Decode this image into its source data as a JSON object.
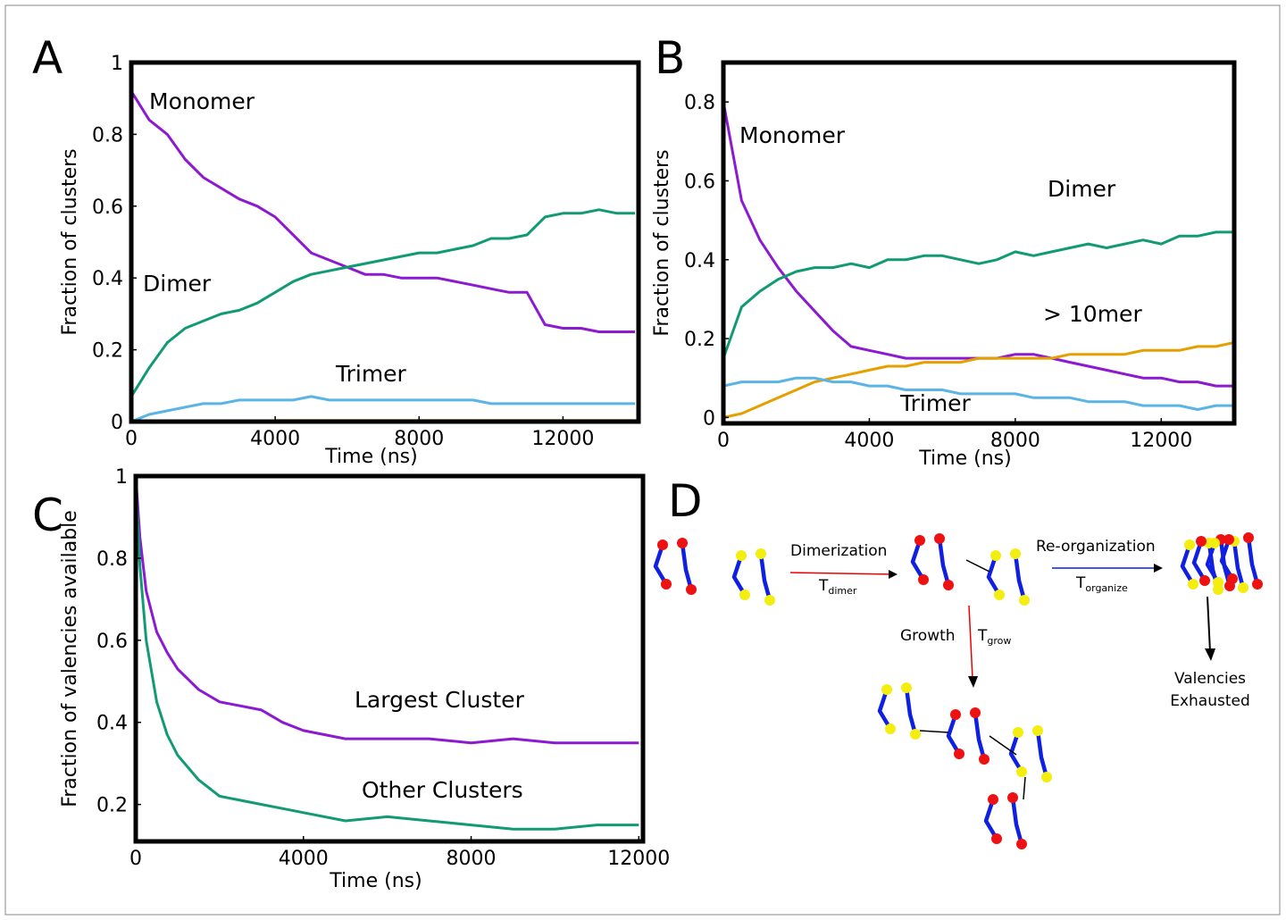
{
  "panel_labels": [
    "A",
    "B",
    "C",
    "D"
  ],
  "chart_data": [
    {
      "type": "line",
      "xlabel": "Time (ns)",
      "ylabel": "Fraction of clusters",
      "xlim": [
        0,
        14100
      ],
      "ylim": [
        0,
        1
      ],
      "xticks": [
        0,
        4000,
        8000,
        12000
      ],
      "yticks": [
        0,
        0.2,
        0.4,
        0.6,
        0.8,
        1
      ],
      "x": [
        0,
        500,
        1000,
        1500,
        2000,
        2500,
        3000,
        3500,
        4000,
        4500,
        5000,
        5500,
        6000,
        6500,
        7000,
        7500,
        8000,
        8500,
        9000,
        9500,
        10000,
        10500,
        11000,
        11500,
        12000,
        12500,
        13000,
        13500,
        14000
      ],
      "series": [
        {
          "name": "Monomer",
          "color": "#8b1ad0",
          "values": [
            0.92,
            0.84,
            0.8,
            0.73,
            0.68,
            0.65,
            0.62,
            0.6,
            0.57,
            0.52,
            0.47,
            0.45,
            0.43,
            0.41,
            0.41,
            0.4,
            0.4,
            0.4,
            0.39,
            0.38,
            0.37,
            0.36,
            0.36,
            0.27,
            0.26,
            0.26,
            0.25,
            0.25,
            0.25
          ]
        },
        {
          "name": "Dimer",
          "color": "#129a74",
          "values": [
            0.07,
            0.15,
            0.22,
            0.26,
            0.28,
            0.3,
            0.31,
            0.33,
            0.36,
            0.39,
            0.41,
            0.42,
            0.43,
            0.44,
            0.45,
            0.46,
            0.47,
            0.47,
            0.48,
            0.49,
            0.51,
            0.51,
            0.52,
            0.57,
            0.58,
            0.58,
            0.59,
            0.58,
            0.58
          ]
        },
        {
          "name": "Trimer",
          "color": "#5ab4e6",
          "values": [
            0.0,
            0.02,
            0.03,
            0.04,
            0.05,
            0.05,
            0.06,
            0.06,
            0.06,
            0.06,
            0.07,
            0.06,
            0.06,
            0.06,
            0.06,
            0.06,
            0.06,
            0.06,
            0.06,
            0.06,
            0.05,
            0.05,
            0.05,
            0.05,
            0.05,
            0.05,
            0.05,
            0.05,
            0.05
          ]
        },
        {
          "color": "#e69f00",
          "values": [
            null,
            null,
            null,
            null,
            null,
            null,
            null,
            null,
            0.003,
            0.003,
            0.003,
            0.003,
            0.003,
            0.003,
            0.003,
            0.003,
            0.003,
            0.003,
            0.003,
            0.003,
            0.003,
            0.003,
            0.003,
            0.003,
            0.003,
            0.003,
            0.003,
            0.003,
            0.003
          ]
        }
      ]
    },
    {
      "type": "line",
      "xlabel": "Time (ns)",
      "ylabel": "Fraction of clusters",
      "xlim": [
        0,
        14000
      ],
      "ylim": [
        -0.015,
        0.9
      ],
      "xticks": [
        0,
        4000,
        8000,
        12000
      ],
      "yticks": [
        0,
        0.2,
        0.4,
        0.6,
        0.8
      ],
      "x": [
        0,
        500,
        1000,
        1500,
        2000,
        2500,
        3000,
        3500,
        4000,
        4500,
        5000,
        5500,
        6000,
        6500,
        7000,
        7500,
        8000,
        8500,
        9000,
        9500,
        10000,
        10500,
        11000,
        11500,
        12000,
        12500,
        13000,
        13500,
        14000
      ],
      "series": [
        {
          "name": "Monomer",
          "color": "#8b1ad0",
          "values": [
            0.8,
            0.55,
            0.45,
            0.38,
            0.32,
            0.27,
            0.22,
            0.18,
            0.17,
            0.16,
            0.15,
            0.15,
            0.15,
            0.15,
            0.15,
            0.15,
            0.16,
            0.16,
            0.15,
            0.14,
            0.13,
            0.12,
            0.11,
            0.1,
            0.1,
            0.09,
            0.09,
            0.08,
            0.08
          ]
        },
        {
          "name": "Dimer",
          "color": "#129a74",
          "values": [
            0.15,
            0.28,
            0.32,
            0.35,
            0.37,
            0.38,
            0.38,
            0.39,
            0.38,
            0.4,
            0.4,
            0.41,
            0.41,
            0.4,
            0.39,
            0.4,
            0.42,
            0.41,
            0.42,
            0.43,
            0.44,
            0.43,
            0.44,
            0.45,
            0.44,
            0.46,
            0.46,
            0.47,
            0.47
          ]
        },
        {
          "name": "> 10mer",
          "color": "#e69f00",
          "values": [
            0.0,
            0.01,
            0.03,
            0.05,
            0.07,
            0.09,
            0.1,
            0.11,
            0.12,
            0.13,
            0.13,
            0.14,
            0.14,
            0.14,
            0.15,
            0.15,
            0.15,
            0.15,
            0.15,
            0.16,
            0.16,
            0.16,
            0.16,
            0.17,
            0.17,
            0.17,
            0.18,
            0.18,
            0.19
          ]
        },
        {
          "name": "Trimer",
          "color": "#5ab4e6",
          "values": [
            0.08,
            0.09,
            0.09,
            0.09,
            0.1,
            0.1,
            0.09,
            0.09,
            0.08,
            0.08,
            0.07,
            0.07,
            0.07,
            0.06,
            0.06,
            0.06,
            0.06,
            0.05,
            0.05,
            0.05,
            0.04,
            0.04,
            0.04,
            0.03,
            0.03,
            0.03,
            0.02,
            0.03,
            0.03
          ]
        }
      ]
    },
    {
      "type": "line",
      "xlabel": "Time (ns)",
      "ylabel": "Fraction of valencies available",
      "xlim": [
        0,
        12100
      ],
      "ylim": [
        0.11,
        1.0
      ],
      "xticks": [
        0,
        4000,
        8000,
        12000
      ],
      "yticks": [
        0.2,
        0.4,
        0.6,
        0.8,
        1
      ],
      "x": [
        0,
        100,
        250,
        500,
        750,
        1000,
        1500,
        2000,
        2500,
        3000,
        3500,
        4000,
        5000,
        6000,
        7000,
        8000,
        9000,
        10000,
        11000,
        12000
      ],
      "series": [
        {
          "name": "Largest Cluster",
          "color": "#8b1ad0",
          "values": [
            1.0,
            0.85,
            0.72,
            0.62,
            0.57,
            0.53,
            0.48,
            0.45,
            0.44,
            0.43,
            0.4,
            0.38,
            0.36,
            0.36,
            0.36,
            0.35,
            0.36,
            0.35,
            0.35,
            0.35
          ]
        },
        {
          "name": "Other Clusters",
          "color": "#129a74",
          "values": [
            0.98,
            0.78,
            0.6,
            0.45,
            0.37,
            0.32,
            0.26,
            0.22,
            0.21,
            0.2,
            0.19,
            0.18,
            0.16,
            0.17,
            0.16,
            0.15,
            0.14,
            0.14,
            0.15,
            0.15
          ]
        }
      ]
    }
  ],
  "diagram": {
    "steps": [
      {
        "label": "Dimerization",
        "rate": "T",
        "rate_sub": "dimer"
      },
      {
        "label": "Re-organization",
        "rate": "T",
        "rate_sub": "organize"
      },
      {
        "label": "Growth",
        "rate": "T",
        "rate_sub": "grow"
      }
    ],
    "outcome": [
      "Valencies",
      "Exhausted"
    ]
  }
}
